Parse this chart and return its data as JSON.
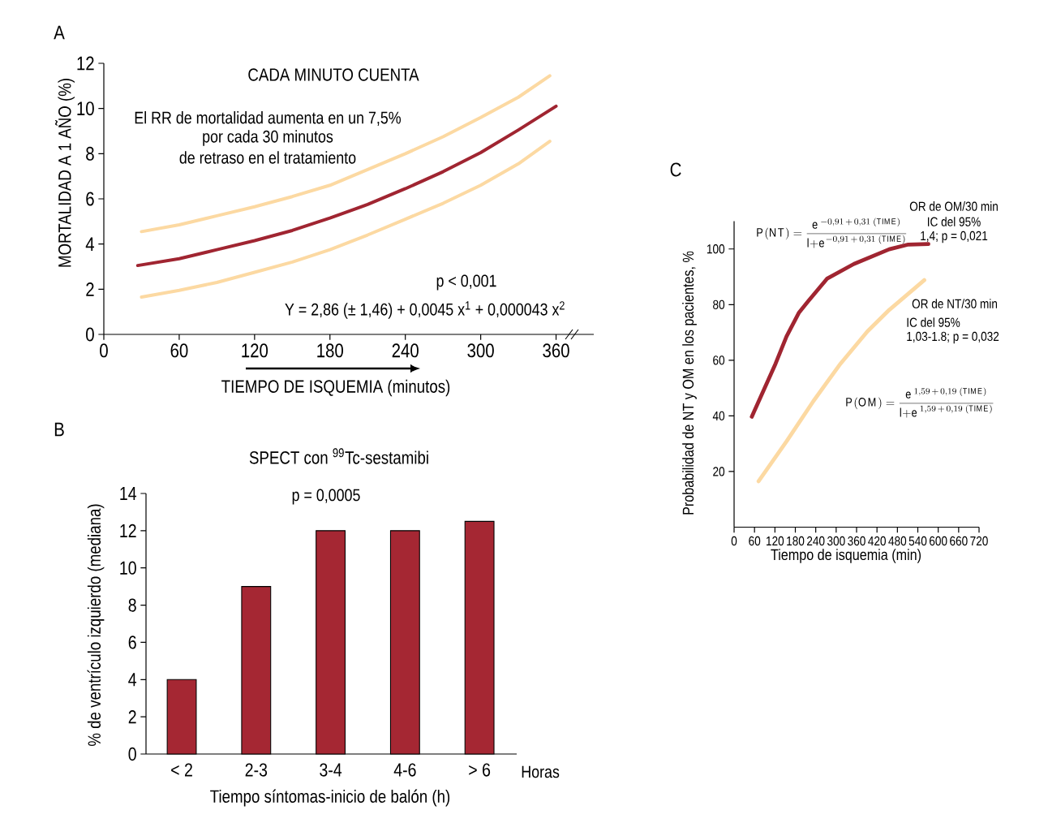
{
  "chart_data": [
    {
      "type": "line",
      "title": "A",
      "subtitle": "CADA MINUTO CUENTA",
      "xlabel": "TIEMPO DE ISQUEMIA (minutos)",
      "ylabel": "MORTALIDAD A 1 AÑO (%)",
      "annotations": [
        "El RR de mortalidad aumenta en un 7,5%",
        "por cada 30 minutos",
        "de retraso en el tratamiento",
        "p < 0,001",
        "Y = 2,86 (± 1,46) + 0,0045 x$^{1}$ + 0,000043 x$^{2}$"
      ],
      "series": [
        {
          "color": "#fcd9a2",
          "x": [
            30,
            60,
            90,
            120,
            150,
            180,
            210,
            240,
            270,
            300,
            330,
            355
          ],
          "values": [
            4.55,
            4.85,
            5.25,
            5.65,
            6.1,
            6.6,
            7.3,
            8.0,
            8.75,
            9.6,
            10.5,
            11.45
          ]
        },
        {
          "color": "#fcd9a2",
          "x": [
            30,
            60,
            90,
            120,
            150,
            180,
            210,
            240,
            270,
            300,
            330,
            355
          ],
          "values": [
            1.65,
            1.95,
            2.3,
            2.75,
            3.2,
            3.75,
            4.4,
            5.1,
            5.8,
            6.6,
            7.55,
            8.55
          ]
        },
        {
          "color": "#a02531",
          "x": [
            27,
            60,
            90,
            120,
            150,
            180,
            210,
            240,
            270,
            300,
            330,
            360
          ],
          "values": [
            3.05,
            3.35,
            3.75,
            4.15,
            4.6,
            5.15,
            5.75,
            6.45,
            7.2,
            8.05,
            9.05,
            10.1
          ]
        }
      ],
      "xlim": [
        0,
        390
      ],
      "xticks": [
        0,
        60,
        120,
        180,
        240,
        300,
        360
      ],
      "ylim": [
        0,
        12
      ],
      "yticks": [
        0,
        2,
        4,
        6,
        8,
        10,
        12
      ]
    },
    {
      "type": "bar",
      "title": "B",
      "subtitle": "SPECT con $^{99}$Tc-sestamibi",
      "xlabel": "Tiempo síntomas-inicio de balón (h)",
      "ylabel": "% de ventrículo izquierdo (mediana)",
      "annotations": [
        "p = 0,0005",
        "Horas"
      ],
      "categories": [
        "< 2",
        "2-3",
        "3-4",
        "4-6",
        "> 6"
      ],
      "values": [
        4,
        9,
        12,
        12,
        12.5
      ],
      "color": "#a52733",
      "ylim": [
        0,
        14
      ],
      "yticks": [
        0,
        2,
        4,
        6,
        8,
        10,
        12,
        14
      ]
    },
    {
      "type": "line",
      "title": "C",
      "xlabel": "Tiempo de isquemia (min)",
      "ylabel": "Probabilidad de NT y OM en los pacientes, %",
      "annotations": [
        "OR de OM/30 min",
        "IC del 95%",
        "1,4; p = 0,021",
        "OR de NT/30 min",
        "IC del 95%",
        "1,03-1.8; p = 0,032",
        "\\mathrm{P(NT)} = \\frac{\\mathrm{e}^{\\,-0{,}91\\,+\\,0{,}31\\;(\\mathrm{TIME})}}{\\mathrm{l{+}e}^{-0{,}91\\,+\\,0{,}31\\;(\\mathrm{TIME})}}",
        "\\mathrm{P(OM)} = \\frac{\\mathrm{e}^{\\,1{,}59\\,+\\,0{,}19\\;(\\mathrm{TIME})}}{\\mathrm{l{+}e}^{\\,1{,}59\\,+\\,0{,}19\\;(\\mathrm{TIME})}}"
      ],
      "series": [
        {
          "color": "#a02531",
          "x": [
            52,
            122,
            154,
            191,
            217,
            273,
            352,
            456,
            512,
            571
          ],
          "values": [
            39.7,
            58.8,
            68.5,
            77.2,
            81.1,
            89.3,
            94.6,
            99.9,
            101.6,
            101.8
          ]
        },
        {
          "color": "#fcd9a2",
          "x": [
            72,
            154,
            233,
            313,
            392,
            456,
            559
          ],
          "values": [
            16.5,
            30.8,
            45.3,
            58.8,
            70.4,
            78.1,
            88.8
          ]
        }
      ],
      "xlim": [
        0,
        720
      ],
      "xticks": [
        0,
        60,
        120,
        180,
        240,
        300,
        360,
        420,
        480,
        540,
        600,
        660,
        720
      ],
      "ylim": [
        0,
        110
      ],
      "yticks": [
        20,
        40,
        60,
        80,
        100
      ]
    }
  ]
}
